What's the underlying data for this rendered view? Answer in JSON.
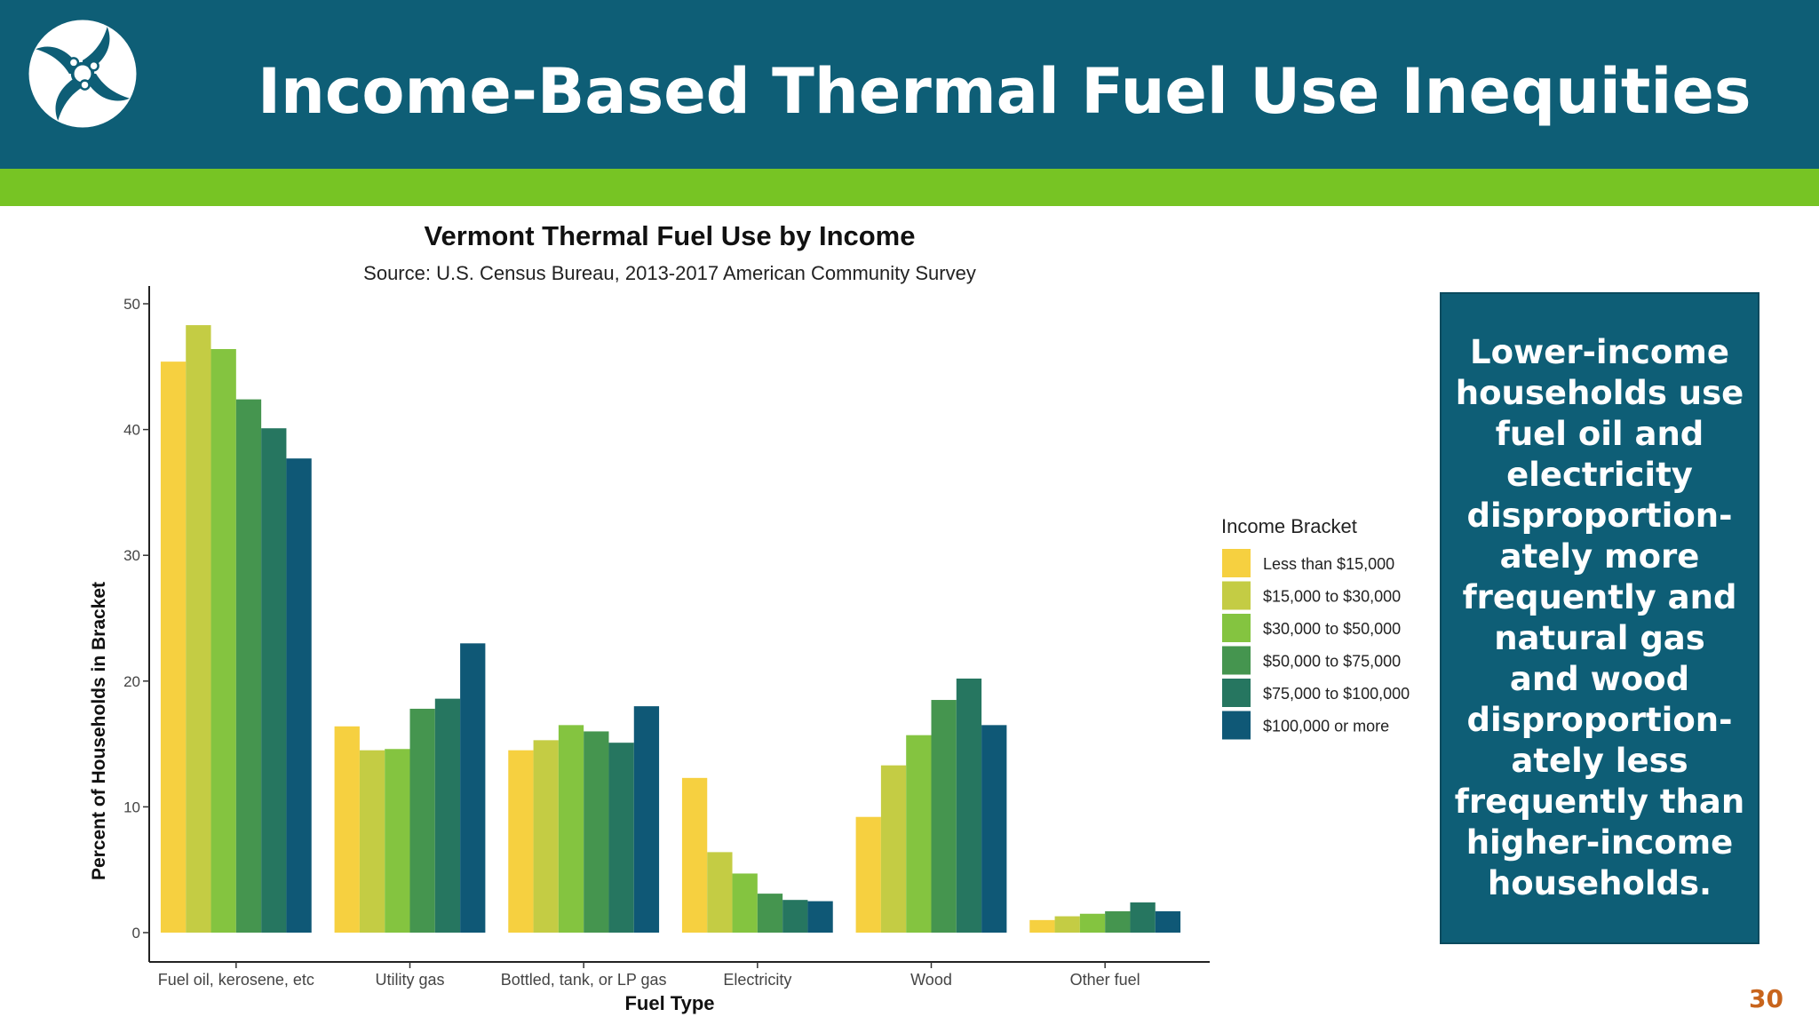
{
  "header": {
    "title": "Income-Based Thermal Fuel Use Inequities",
    "logo_icon": "pinwheel-logo-icon"
  },
  "callout": {
    "text": "Lower-income households use fuel oil and electricity disproportion-ately more frequently and natural gas and wood disproportion-ately less frequently than higher-income households."
  },
  "page_number": "30",
  "colors": {
    "header_bg": "#0e5e76",
    "accent_bar": "#77c424",
    "page_number": "#c8641c"
  },
  "chart_data": {
    "type": "bar",
    "title": "Vermont Thermal Fuel Use by Income",
    "subtitle": "Source: U.S. Census Bureau, 2013-2017 American Community Survey",
    "xlabel": "Fuel Type",
    "ylabel": "Percent of Households in Bracket",
    "ylim": [
      0,
      50
    ],
    "yticks": [
      0,
      10,
      20,
      30,
      40,
      50
    ],
    "legend_title": "Income Bracket",
    "legend_position": "right",
    "grid": false,
    "categories": [
      "Fuel oil, kerosene, etc",
      "Utility gas",
      "Bottled, tank, or LP gas",
      "Electricity",
      "Wood",
      "Other fuel"
    ],
    "series": [
      {
        "name": "Less than $15,000",
        "color": "#f6d040",
        "values": [
          45.4,
          16.4,
          14.5,
          12.3,
          9.2,
          1.0
        ]
      },
      {
        "name": "$15,000 to $30,000",
        "color": "#c4cc44",
        "values": [
          48.3,
          14.5,
          15.3,
          6.4,
          13.3,
          1.3
        ]
      },
      {
        "name": "$30,000 to $50,000",
        "color": "#84c440",
        "values": [
          46.4,
          14.6,
          16.5,
          4.7,
          15.7,
          1.5
        ]
      },
      {
        "name": "$50,000 to $75,000",
        "color": "#45954f",
        "values": [
          42.4,
          17.8,
          16.0,
          3.1,
          18.5,
          1.7
        ]
      },
      {
        "name": "$75,000 to $100,000",
        "color": "#267660",
        "values": [
          40.1,
          18.6,
          15.1,
          2.6,
          20.2,
          2.4
        ]
      },
      {
        "name": "$100,000 or more",
        "color": "#0f5876",
        "values": [
          37.7,
          23.0,
          18.0,
          2.5,
          16.5,
          1.7
        ]
      }
    ]
  }
}
